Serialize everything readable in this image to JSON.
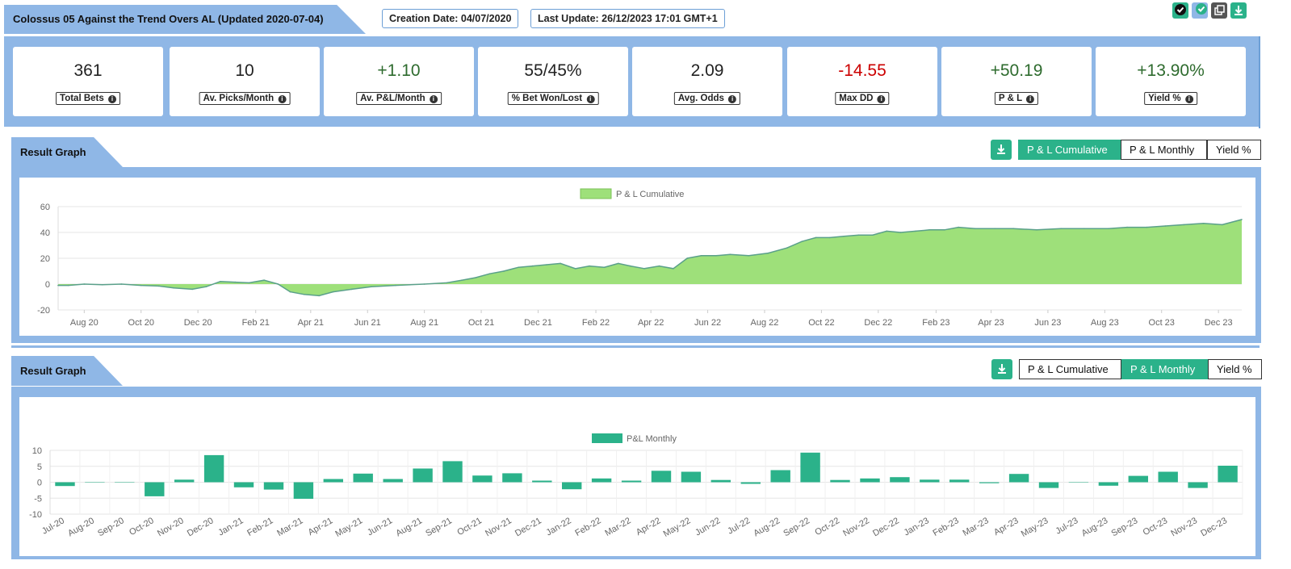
{
  "header": {
    "title": "Colossus 05 Against the Trend Overs AL (Updated 2020-07-04)",
    "creation_date": "Creation Date: 04/07/2020",
    "last_update": "Last Update: 26/12/2023 17:01 GMT+1"
  },
  "colors": {
    "accent_green": "#2bb28a",
    "band_blue": "#8fb7e6",
    "positive": "#2e6b2e",
    "negative": "#cc0000",
    "area_fill": "#9ee07a",
    "area_line": "#5aa08a"
  },
  "icons": [
    "check-badge-icon",
    "check-badge-icon",
    "copy-icon",
    "download-icon"
  ],
  "stats": [
    {
      "value": "361",
      "label": "Total Bets",
      "tone": "neutral"
    },
    {
      "value": "10",
      "label": "Av. Picks/Month",
      "tone": "neutral"
    },
    {
      "value": "+1.10",
      "label": "Av. P&L/Month",
      "tone": "positive"
    },
    {
      "value": "55/45%",
      "label": "% Bet Won/Lost",
      "tone": "neutral"
    },
    {
      "value": "2.09",
      "label": "Avg. Odds",
      "tone": "neutral"
    },
    {
      "value": "-14.55",
      "label": "Max DD",
      "tone": "negative"
    },
    {
      "value": "+50.19",
      "label": "P & L",
      "tone": "positive"
    },
    {
      "value": "+13.90%",
      "label": "Yield %",
      "tone": "positive"
    }
  ],
  "sections": [
    {
      "title": "Result Graph",
      "tabs": [
        "P & L Cumulative",
        "P & L Monthly",
        "Yield %"
      ],
      "active": 0
    },
    {
      "title": "Result Graph",
      "tabs": [
        "P & L Cumulative",
        "P & L Monthly",
        "Yield %"
      ],
      "active": 1
    }
  ],
  "chart_data": [
    {
      "type": "area",
      "legend": "P & L Cumulative",
      "legend_position": "top-center",
      "grid": true,
      "ylim": [
        -20,
        60
      ],
      "yticks": [
        -20,
        0,
        20,
        40,
        60
      ],
      "xticks": [
        "Aug 20",
        "Oct 20",
        "Dec 20",
        "Feb 21",
        "Apr 21",
        "Jun 21",
        "Aug 21",
        "Oct 21",
        "Dec 21",
        "Feb 22",
        "Apr 22",
        "Jun 22",
        "Aug 22",
        "Oct 22",
        "Dec 22",
        "Feb 23",
        "Apr 23",
        "Jun 23",
        "Aug 23",
        "Oct 23",
        "Dec 23"
      ],
      "xlim": [
        "2020-07-04",
        "2023-12-26"
      ],
      "x": [
        "2020-07-04",
        "2020-07-15",
        "2020-08-01",
        "2020-08-20",
        "2020-09-10",
        "2020-10-01",
        "2020-10-20",
        "2020-11-05",
        "2020-11-25",
        "2020-12-10",
        "2020-12-25",
        "2021-01-10",
        "2021-01-25",
        "2021-02-10",
        "2021-02-25",
        "2021-03-10",
        "2021-03-25",
        "2021-04-10",
        "2021-04-25",
        "2021-05-15",
        "2021-06-05",
        "2021-07-01",
        "2021-08-01",
        "2021-08-25",
        "2021-09-10",
        "2021-09-25",
        "2021-10-10",
        "2021-10-25",
        "2021-11-10",
        "2021-11-25",
        "2021-12-10",
        "2021-12-25",
        "2022-01-10",
        "2022-01-25",
        "2022-02-10",
        "2022-02-25",
        "2022-03-10",
        "2022-03-25",
        "2022-04-10",
        "2022-04-25",
        "2022-05-10",
        "2022-05-25",
        "2022-06-10",
        "2022-06-25",
        "2022-07-15",
        "2022-08-05",
        "2022-08-25",
        "2022-09-10",
        "2022-09-25",
        "2022-10-10",
        "2022-10-25",
        "2022-11-10",
        "2022-11-25",
        "2022-12-10",
        "2022-12-25",
        "2023-01-10",
        "2023-01-25",
        "2023-02-10",
        "2023-02-25",
        "2023-03-15",
        "2023-04-05",
        "2023-04-25",
        "2023-05-20",
        "2023-06-15",
        "2023-07-10",
        "2023-08-05",
        "2023-08-25",
        "2023-09-15",
        "2023-10-05",
        "2023-10-25",
        "2023-11-15",
        "2023-12-05",
        "2023-12-26"
      ],
      "y": [
        -1,
        -1,
        0,
        -0.5,
        0,
        -1,
        -1.5,
        -3,
        -4,
        -2,
        2,
        1.5,
        1,
        3,
        0,
        -6,
        -8,
        -9,
        -6,
        -4,
        -2,
        -1,
        0,
        1,
        3,
        5,
        8,
        10,
        13,
        14,
        15,
        16,
        12,
        14,
        13,
        16,
        14,
        12,
        14,
        12,
        20,
        22,
        22,
        23,
        22,
        24,
        28,
        33,
        36,
        36,
        37,
        38,
        38,
        41,
        40,
        41,
        42,
        42,
        44,
        43,
        43,
        43,
        42,
        43,
        43,
        43,
        44,
        44,
        45,
        46,
        47,
        46,
        50
      ]
    },
    {
      "type": "bar",
      "legend": "P&L Monthly",
      "legend_position": "top-center",
      "grid": true,
      "ylim": [
        -10,
        10
      ],
      "yticks": [
        -10,
        -5,
        0,
        5,
        10
      ],
      "categories": [
        "Jul-20",
        "Aug-20",
        "Sep-20",
        "Oct-20",
        "Nov-20",
        "Dec-20",
        "Jan-21",
        "Feb-21",
        "Mar-21",
        "Apr-21",
        "May-21",
        "Jun-21",
        "Aug-21",
        "Sep-21",
        "Oct-21",
        "Nov-21",
        "Dec-21",
        "Jan-22",
        "Feb-22",
        "Mar-22",
        "Apr-22",
        "May-22",
        "Jun-22",
        "Jul-22",
        "Aug-22",
        "Sep-22",
        "Oct-22",
        "Nov-22",
        "Dec-22",
        "Jan-23",
        "Feb-23",
        "Mar-23",
        "Apr-23",
        "May-23",
        "Jul-23",
        "Aug-23",
        "Sep-23",
        "Oct-23",
        "Nov-23",
        "Dec-23"
      ],
      "values": [
        -1.2,
        0,
        -0.1,
        -4.4,
        0.8,
        8.5,
        -1.6,
        -2.3,
        -5.2,
        1,
        2.7,
        1,
        4.3,
        6.6,
        2.1,
        2.8,
        0.5,
        -2.2,
        1.2,
        0.5,
        3.6,
        3.3,
        0.7,
        -0.5,
        3.8,
        9.3,
        0.7,
        1.2,
        1.6,
        0.8,
        0.8,
        -0.3,
        2.6,
        -1.8,
        0,
        -1.1,
        2,
        3.3,
        -1.8,
        5.2
      ]
    }
  ]
}
